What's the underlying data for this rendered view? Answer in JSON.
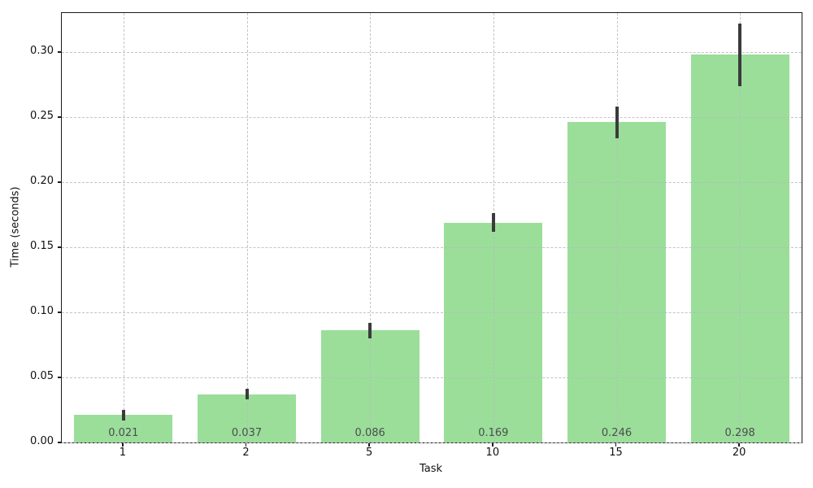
{
  "chart_data": {
    "type": "bar",
    "title": "",
    "xlabel": "Task",
    "ylabel": "Time (seconds)",
    "categories": [
      "1",
      "2",
      "5",
      "10",
      "15",
      "20"
    ],
    "values": [
      0.021,
      0.037,
      0.086,
      0.169,
      0.246,
      0.298
    ],
    "errors": [
      0.004,
      0.004,
      0.006,
      0.007,
      0.012,
      0.024
    ],
    "bar_labels": [
      "0.021",
      "0.037",
      "0.086",
      "0.169",
      "0.246",
      "0.298"
    ],
    "yticks": [
      0.0,
      0.05,
      0.1,
      0.15,
      0.2,
      0.25,
      0.3
    ],
    "ytick_labels": [
      "0.00",
      "0.05",
      "0.10",
      "0.15",
      "0.20",
      "0.25",
      "0.30"
    ],
    "ylim": [
      0,
      0.33
    ],
    "grid": true,
    "grid_style": "dashed",
    "legend": "none",
    "bar_color": "#9ade9a",
    "error_color": "#3b3b3b",
    "value_label_color": "#4d4d4d"
  }
}
